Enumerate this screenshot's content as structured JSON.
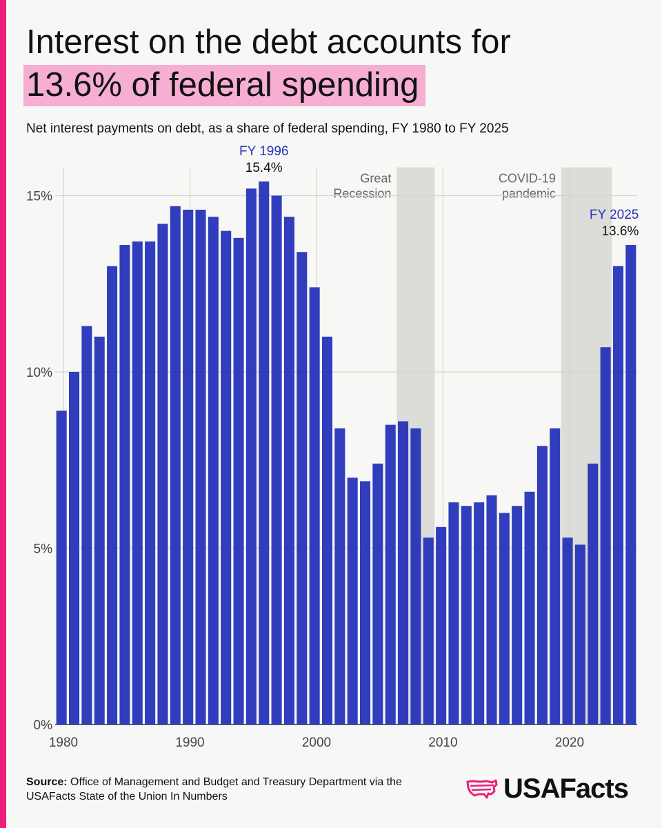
{
  "header": {
    "title_line1": "Interest on the debt accounts for",
    "title_line2": "13.6% of federal spending",
    "subtitle": "Net interest payments on debt, as a share of federal spending, FY 1980 to FY 2025"
  },
  "footer": {
    "source_label": "Source:",
    "source_text": " Office of Management and Budget and Treasury Department via the USAFacts State of the Union In Numbers",
    "logo_text": "USAFacts"
  },
  "colors": {
    "accent": "#ec1e79",
    "highlight": "#f7aed3",
    "bar": "#2533b8",
    "annotation_label": "#2533b8",
    "shade": "#dcdcd8"
  },
  "chart_data": {
    "type": "bar",
    "title": "Net interest payments on debt, as a share of federal spending, FY 1980 to FY 2025",
    "xlabel": "",
    "ylabel": "",
    "ylim": [
      0,
      15.8
    ],
    "yticks": [
      0,
      5,
      10,
      15
    ],
    "ytick_labels": [
      "0%",
      "5%",
      "10%",
      "15%"
    ],
    "xticks": [
      1980,
      1990,
      2000,
      2010,
      2020
    ],
    "xtick_labels": [
      "1980",
      "1990",
      "2000",
      "2010",
      "2020"
    ],
    "grid": true,
    "years": [
      1980,
      1981,
      1982,
      1983,
      1984,
      1985,
      1986,
      1987,
      1988,
      1989,
      1990,
      1991,
      1992,
      1993,
      1994,
      1995,
      1996,
      1997,
      1998,
      1999,
      2000,
      2001,
      2002,
      2003,
      2004,
      2005,
      2006,
      2007,
      2008,
      2009,
      2010,
      2011,
      2012,
      2013,
      2014,
      2015,
      2016,
      2017,
      2018,
      2019,
      2020,
      2021,
      2022,
      2023,
      2024,
      2025
    ],
    "values": [
      8.9,
      10.0,
      11.3,
      11.0,
      13.0,
      13.6,
      13.7,
      13.7,
      14.2,
      14.7,
      14.6,
      14.6,
      14.4,
      14.0,
      13.8,
      15.2,
      15.4,
      15.0,
      14.4,
      13.4,
      12.4,
      11.0,
      8.4,
      7.0,
      6.9,
      7.4,
      8.5,
      8.6,
      8.4,
      5.3,
      5.6,
      6.3,
      6.2,
      6.3,
      6.5,
      6.0,
      6.2,
      6.6,
      7.9,
      8.4,
      5.3,
      5.1,
      7.4,
      10.7,
      13.0,
      13.6
    ],
    "shaded_periods": [
      {
        "label_line1": "Great",
        "label_line2": "Recession",
        "start": 2006.5,
        "end": 2009.5
      },
      {
        "label_line1": "COVID-19",
        "label_line2": "pandemic",
        "start": 2019.5,
        "end": 2023.5
      }
    ],
    "annotations": [
      {
        "year": 1996,
        "label": "FY 1996",
        "value_label": "15.4%"
      },
      {
        "year": 2025,
        "label": "FY 2025",
        "value_label": "13.6%"
      }
    ]
  }
}
